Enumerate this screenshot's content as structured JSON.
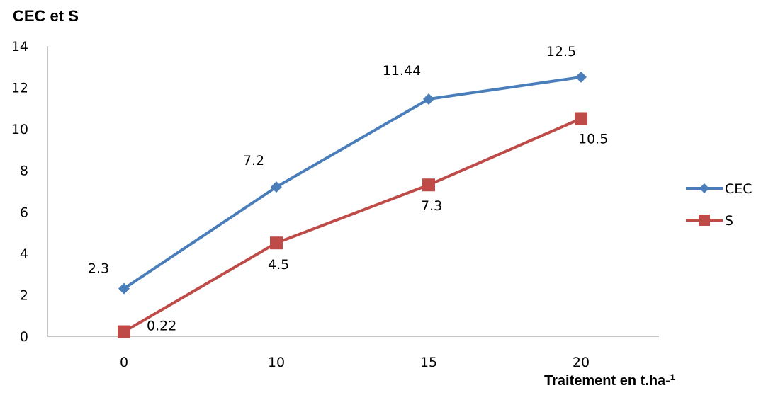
{
  "chart_data": {
    "type": "line",
    "ylabel": "CEC et S",
    "xlabel": "Traitement en t.ha-1",
    "xlabel_main": "Traitement en t.ha-",
    "xlabel_sup": "1",
    "categories": [
      "0",
      "10",
      "15",
      "20"
    ],
    "ylim": [
      0,
      14
    ],
    "yticks": [
      0,
      2,
      4,
      6,
      8,
      10,
      12,
      14
    ],
    "grid": false,
    "legend": "right",
    "series": [
      {
        "name": "CEC",
        "values": [
          2.3,
          7.2,
          11.44,
          12.5
        ],
        "labels": [
          "2.3",
          "7.2",
          "11.44",
          "12.5"
        ],
        "color": "#4A7EBB",
        "marker": "diamond",
        "label_position": "above"
      },
      {
        "name": "S",
        "values": [
          0.22,
          4.5,
          7.3,
          10.5
        ],
        "labels": [
          "0.22",
          "4.5",
          "7.3",
          "10.5"
        ],
        "color": "#BE4B48",
        "marker": "square",
        "label_position": "below"
      }
    ]
  }
}
